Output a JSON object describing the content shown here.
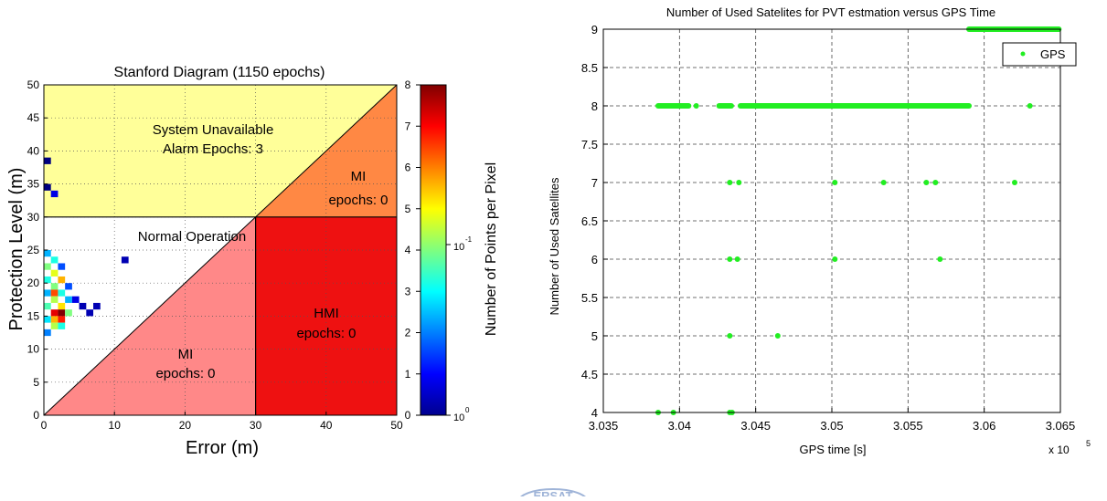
{
  "chart_data": [
    {
      "type": "heatmap",
      "title": "Stanford Diagram (1150 epochs)",
      "xlabel": "Error (m)",
      "ylabel": "Protection Level (m)",
      "colorbar_label": "Number of Points per Pixel",
      "xlim": [
        0,
        50
      ],
      "ylim": [
        0,
        50
      ],
      "x_ticks": [
        "0",
        "10",
        "20",
        "30",
        "40",
        "50"
      ],
      "y_ticks": [
        "0",
        "5",
        "10",
        "15",
        "20",
        "25",
        "30",
        "35",
        "40",
        "45",
        "50"
      ],
      "alert_limit": 30,
      "regions": [
        {
          "key": "unavailable",
          "lines": [
            "System Unavailable",
            "Alarm Epochs: 3"
          ],
          "color": "#ffff99"
        },
        {
          "key": "mi_upper",
          "lines": [
            "MI",
            "epochs: 0"
          ],
          "color": "#ff8844"
        },
        {
          "key": "normal",
          "lines": [
            "Normal Operation"
          ],
          "color": "#ffffff"
        },
        {
          "key": "mi_lower",
          "lines": [
            "MI",
            "epochs: 0"
          ],
          "color": "#ff8888"
        },
        {
          "key": "hmi",
          "lines": [
            "HMI",
            "epochs: 0"
          ],
          "color": "#ee1111"
        }
      ],
      "colorbar_ticks_linear": [
        "0",
        "1",
        "2",
        "3",
        "4",
        "5",
        "6",
        "7",
        "8"
      ],
      "colorbar_ticks_log": [
        {
          "base": "10",
          "exp": "0"
        },
        {
          "base": "10",
          "exp": "-1"
        }
      ],
      "cells": [
        {
          "x": 0.5,
          "y": 38.5,
          "v": 0.0
        },
        {
          "x": 0.5,
          "y": 34.5,
          "v": 0.0
        },
        {
          "x": 1.5,
          "y": 33.5,
          "v": 0.1
        },
        {
          "x": 0.5,
          "y": 24.5,
          "v": 0.3
        },
        {
          "x": 1.5,
          "y": 23.5,
          "v": 0.4
        },
        {
          "x": 0.5,
          "y": 22.5,
          "v": 0.5
        },
        {
          "x": 2.5,
          "y": 22.5,
          "v": 0.2
        },
        {
          "x": 1.5,
          "y": 21.5,
          "v": 0.6
        },
        {
          "x": 0.5,
          "y": 20.5,
          "v": 0.4
        },
        {
          "x": 2.5,
          "y": 20.5,
          "v": 0.7
        },
        {
          "x": 1.5,
          "y": 19.5,
          "v": 0.5
        },
        {
          "x": 3.5,
          "y": 19.5,
          "v": 0.2
        },
        {
          "x": 0.5,
          "y": 18.5,
          "v": 0.3
        },
        {
          "x": 1.5,
          "y": 18.5,
          "v": 0.8
        },
        {
          "x": 2.5,
          "y": 18.5,
          "v": 0.4
        },
        {
          "x": 1.5,
          "y": 17.5,
          "v": 0.55
        },
        {
          "x": 3.5,
          "y": 17.5,
          "v": 0.3
        },
        {
          "x": 0.5,
          "y": 16.5,
          "v": 0.45
        },
        {
          "x": 2.5,
          "y": 16.5,
          "v": 0.65
        },
        {
          "x": 1.5,
          "y": 15.5,
          "v": 0.9
        },
        {
          "x": 2.5,
          "y": 15.5,
          "v": 1.0
        },
        {
          "x": 3.5,
          "y": 15.5,
          "v": 0.5
        },
        {
          "x": 0.5,
          "y": 14.5,
          "v": 0.35
        },
        {
          "x": 1.5,
          "y": 14.5,
          "v": 0.7
        },
        {
          "x": 2.5,
          "y": 14.5,
          "v": 0.85
        },
        {
          "x": 1.5,
          "y": 13.5,
          "v": 0.55
        },
        {
          "x": 0.5,
          "y": 12.5,
          "v": 0.25
        },
        {
          "x": 2.5,
          "y": 13.5,
          "v": 0.4
        },
        {
          "x": 5.5,
          "y": 16.5,
          "v": 0.05
        },
        {
          "x": 7.5,
          "y": 16.5,
          "v": 0.05
        },
        {
          "x": 6.5,
          "y": 15.5,
          "v": 0.05
        },
        {
          "x": 11.5,
          "y": 23.5,
          "v": 0.05
        },
        {
          "x": 4.5,
          "y": 17.5,
          "v": 0.1
        }
      ]
    },
    {
      "type": "scatter",
      "title": "Number of Used Satelites for PVT estmation versus GPS Time",
      "xlabel": "GPS time [s]",
      "ylabel": "Number of Used Satellites",
      "x_multiplier": "x 10",
      "x_multiplier_exp": "5",
      "xlim": [
        303500,
        306500
      ],
      "ylim": [
        4,
        9
      ],
      "x_ticks": [
        "3.035",
        "3.04",
        "3.045",
        "3.05",
        "3.055",
        "3.06",
        "3.065"
      ],
      "y_ticks": [
        "4",
        "4.5",
        "5",
        "5.5",
        "6",
        "6.5",
        "7",
        "7.5",
        "8",
        "8.5",
        "9"
      ],
      "series": [
        {
          "name": "GPS",
          "color": "#22ee22",
          "points": [
            {
              "x": 303860,
              "y": 4
            },
            {
              "x": 303960,
              "y": 4
            },
            {
              "x": 304330,
              "y": 4
            },
            {
              "x": 304345,
              "y": 4
            },
            {
              "x": 304330,
              "y": 5
            },
            {
              "x": 304645,
              "y": 5
            },
            {
              "x": 304330,
              "y": 6
            },
            {
              "x": 304380,
              "y": 6
            },
            {
              "x": 305020,
              "y": 6
            },
            {
              "x": 305710,
              "y": 6
            },
            {
              "x": 304330,
              "y": 7
            },
            {
              "x": 304390,
              "y": 7
            },
            {
              "x": 305020,
              "y": 7
            },
            {
              "x": 305340,
              "y": 7
            },
            {
              "x": 305620,
              "y": 7
            },
            {
              "x": 305680,
              "y": 7
            },
            {
              "x": 306200,
              "y": 7
            },
            {
              "x": 306300,
              "y": 8
            },
            {
              "x": 304110,
              "y": 8
            }
          ],
          "runs": [
            {
              "x0": 303860,
              "x1": 304060,
              "y": 8
            },
            {
              "x0": 304260,
              "x1": 304340,
              "y": 8
            },
            {
              "x0": 304400,
              "x1": 305900,
              "y": 8
            },
            {
              "x0": 305900,
              "x1": 306490,
              "y": 9
            }
          ]
        }
      ]
    }
  ],
  "footer": {
    "logo_text": "ERSAT"
  },
  "colors": {
    "heat_low": "#00008f",
    "heat_high": "#800000",
    "gps_marker": "#22ee22",
    "alert_line": "#000000"
  }
}
